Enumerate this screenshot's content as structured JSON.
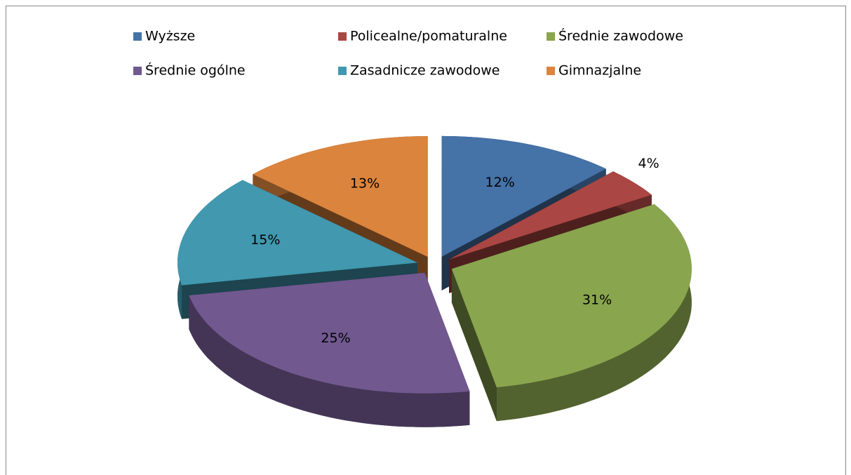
{
  "chart_data": {
    "type": "pie",
    "categories": [
      "Wyższe",
      "Policealne/pomaturalne",
      "Średnie zawodowe",
      "Średnie ogólne",
      "Zasadnicze zawodowe",
      "Gimnazjalne"
    ],
    "values": [
      12,
      4,
      31,
      25,
      15,
      13
    ],
    "value_labels": [
      "12%",
      "4%",
      "31%",
      "25%",
      "15%",
      "13%"
    ],
    "colors": [
      "#4572a7",
      "#aa4643",
      "#89a54e",
      "#71588f",
      "#4198af",
      "#db843d"
    ],
    "legend": "top"
  }
}
